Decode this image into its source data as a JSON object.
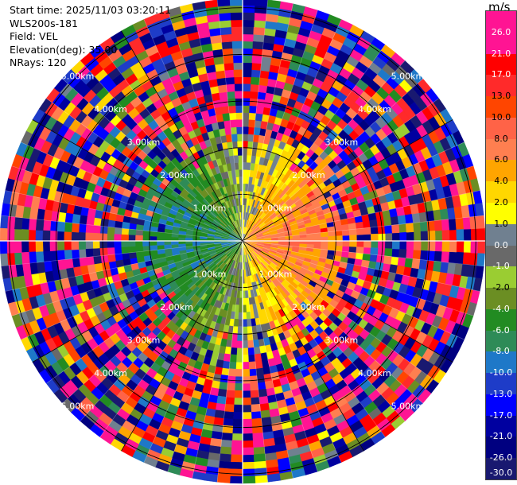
{
  "info": {
    "start_time": "Start time: 2025/11/03 03:20:11",
    "site": "WLS200s-181",
    "field": "Field: VEL",
    "elevation": "Elevation(deg): 35.00",
    "nrays": "NRays: 120"
  },
  "colorbar": {
    "unit": "m/s",
    "ticks": [
      "26.0",
      "21.0",
      "17.0",
      "13.0",
      "10.0",
      "8.0",
      "6.0",
      "4.0",
      "2.0",
      "1.0",
      "0.0",
      "-1.0",
      "-2.0",
      "-4.0",
      "-6.0",
      "-8.0",
      "-10.0",
      "-13.0",
      "-17.0",
      "-21.0",
      "-26.0",
      "-30.0"
    ],
    "colors": [
      "#ff1493",
      "#ff1493",
      "#ff0000",
      "#ff2a2a",
      "#ff4500",
      "#ff6347",
      "#ff7f50",
      "#ffa500",
      "#ffd700",
      "#ffff00",
      "#708090",
      "#696969",
      "#9acd32",
      "#6b8e23",
      "#228b22",
      "#2e8b57",
      "#1e78c8",
      "#1e3cc8",
      "#0000ff",
      "#0000a0",
      "#000080",
      "#191970"
    ]
  },
  "chart_data": {
    "type": "heatmap",
    "subtype": "polar PPI (plan position indicator)",
    "field": "VEL",
    "units": "m/s",
    "nrays": 120,
    "range_ring_labels": [
      "1.00km",
      "2.00km",
      "3.00km",
      "4.00km",
      "5.00km"
    ],
    "range_rings_km": [
      1,
      2,
      3,
      4,
      5
    ],
    "max_range_km": 5.2,
    "color_scale_ticks": [
      26.0,
      21.0,
      17.0,
      13.0,
      10.0,
      8.0,
      6.0,
      4.0,
      2.0,
      1.0,
      0.0,
      -1.0,
      -2.0,
      -4.0,
      -6.0,
      -8.0,
      -10.0,
      -13.0,
      -17.0,
      -21.0,
      -26.0,
      -30.0
    ],
    "pattern": {
      "inner_west_sector": "negative velocities (-4 to -10 m/s, green/blue)",
      "inner_east_sector": "positive velocities (4 to 10 m/s, yellow/orange)",
      "outer_ranges": "noise spanning full scale"
    }
  }
}
